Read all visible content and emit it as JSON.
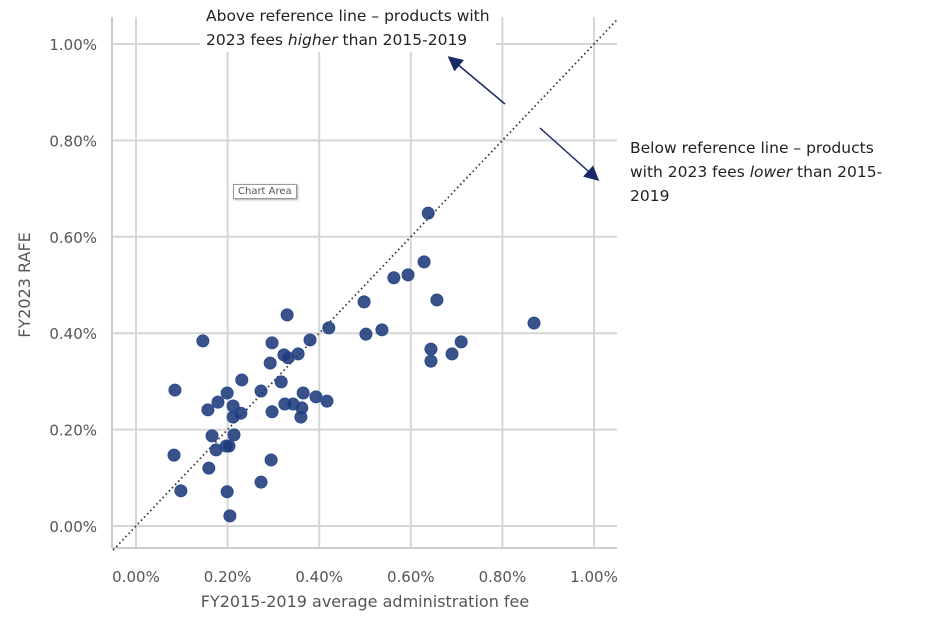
{
  "chart_data": {
    "type": "scatter",
    "xlabel": "FY2015-2019 average administration fee",
    "ylabel": "FY2023 RAFE",
    "xlim": [
      0,
      1.0
    ],
    "ylim": [
      0,
      1.0
    ],
    "x_ticks": [
      "0.00%",
      "0.20%",
      "0.40%",
      "0.60%",
      "0.80%",
      "1.00%"
    ],
    "y_ticks": [
      "0.00%",
      "0.20%",
      "0.40%",
      "0.60%",
      "0.80%",
      "1.00%"
    ],
    "tick_values": [
      0,
      0.2,
      0.4,
      0.6,
      0.8,
      1.0
    ],
    "grid": true,
    "reference_line": "y = x (dotted)",
    "point_color": "#1f3a7a",
    "arrow_color": "#1a2a66",
    "points": [
      [
        0.638,
        0.649
      ],
      [
        0.629,
        0.548
      ],
      [
        0.594,
        0.521
      ],
      [
        0.563,
        0.515
      ],
      [
        0.657,
        0.469
      ],
      [
        0.498,
        0.465
      ],
      [
        0.869,
        0.421
      ],
      [
        0.421,
        0.411
      ],
      [
        0.33,
        0.438
      ],
      [
        0.38,
        0.386
      ],
      [
        0.502,
        0.398
      ],
      [
        0.537,
        0.407
      ],
      [
        0.71,
        0.382
      ],
      [
        0.644,
        0.367
      ],
      [
        0.69,
        0.357
      ],
      [
        0.644,
        0.342
      ],
      [
        0.146,
        0.384
      ],
      [
        0.297,
        0.38
      ],
      [
        0.323,
        0.355
      ],
      [
        0.354,
        0.357
      ],
      [
        0.332,
        0.349
      ],
      [
        0.293,
        0.338
      ],
      [
        0.085,
        0.282
      ],
      [
        0.231,
        0.303
      ],
      [
        0.199,
        0.276
      ],
      [
        0.273,
        0.28
      ],
      [
        0.317,
        0.299
      ],
      [
        0.365,
        0.276
      ],
      [
        0.393,
        0.268
      ],
      [
        0.179,
        0.257
      ],
      [
        0.325,
        0.253
      ],
      [
        0.343,
        0.253
      ],
      [
        0.362,
        0.245
      ],
      [
        0.417,
        0.259
      ],
      [
        0.212,
        0.249
      ],
      [
        0.157,
        0.241
      ],
      [
        0.297,
        0.237
      ],
      [
        0.229,
        0.234
      ],
      [
        0.212,
        0.226
      ],
      [
        0.36,
        0.226
      ],
      [
        0.214,
        0.189
      ],
      [
        0.166,
        0.187
      ],
      [
        0.197,
        0.166
      ],
      [
        0.203,
        0.166
      ],
      [
        0.175,
        0.158
      ],
      [
        0.083,
        0.147
      ],
      [
        0.295,
        0.137
      ],
      [
        0.159,
        0.12
      ],
      [
        0.273,
        0.091
      ],
      [
        0.098,
        0.073
      ],
      [
        0.199,
        0.071
      ],
      [
        0.205,
        0.021
      ]
    ],
    "annotations": {
      "above_line1": "Above reference line – products with",
      "above_line2_pre": "2023 fees ",
      "above_line2_em": "higher",
      "above_line2_post": " than 2015-2019",
      "below_line1": "Below reference line – products",
      "below_line2_pre": "with 2023 fees ",
      "below_line2_em": "lower",
      "below_line2_post": " than 2015-",
      "below_line3": "2019"
    },
    "tooltip": "Chart Area"
  }
}
